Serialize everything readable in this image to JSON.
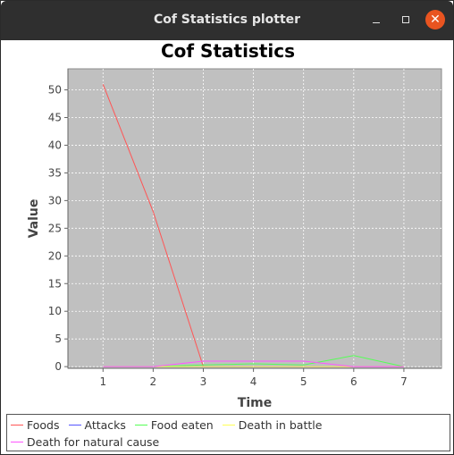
{
  "window": {
    "title": "Cof Statistics plotter",
    "minimize_glyph": "–",
    "maximize_glyph": "",
    "close_glyph": "✕",
    "close_color": "#e95420"
  },
  "chart_data": {
    "type": "line",
    "title": "Cof Statistics",
    "xlabel": "Time",
    "ylabel": "Value",
    "x": [
      1,
      2,
      3,
      4,
      5,
      6,
      7
    ],
    "xlim": [
      0.3,
      7.75
    ],
    "ylim": [
      -0.3,
      53.8
    ],
    "xticks": [
      1,
      2,
      3,
      4,
      5,
      6,
      7
    ],
    "yticks": [
      0,
      5,
      10,
      15,
      20,
      25,
      30,
      35,
      40,
      45,
      50
    ],
    "grid": true,
    "plot_background": "#c0c0c0",
    "legend_position": "bottom",
    "series": [
      {
        "name": "Foods",
        "color": "#ff5555",
        "values": [
          51,
          28,
          0,
          0,
          0,
          0,
          0
        ]
      },
      {
        "name": "Attacks",
        "color": "#5555ff",
        "values": [
          0,
          0,
          0,
          0,
          0,
          0,
          0
        ]
      },
      {
        "name": "Food eaten",
        "color": "#55ff55",
        "values": [
          0,
          0,
          0.3,
          0.5,
          0.3,
          2,
          0
        ]
      },
      {
        "name": "Death in battle",
        "color": "#ffff55",
        "values": [
          0,
          0,
          0,
          0,
          0,
          0,
          0
        ]
      },
      {
        "name": "Death for natural cause",
        "color": "#ff55ff",
        "values": [
          0,
          0,
          1,
          1,
          1,
          0,
          0
        ]
      }
    ]
  }
}
